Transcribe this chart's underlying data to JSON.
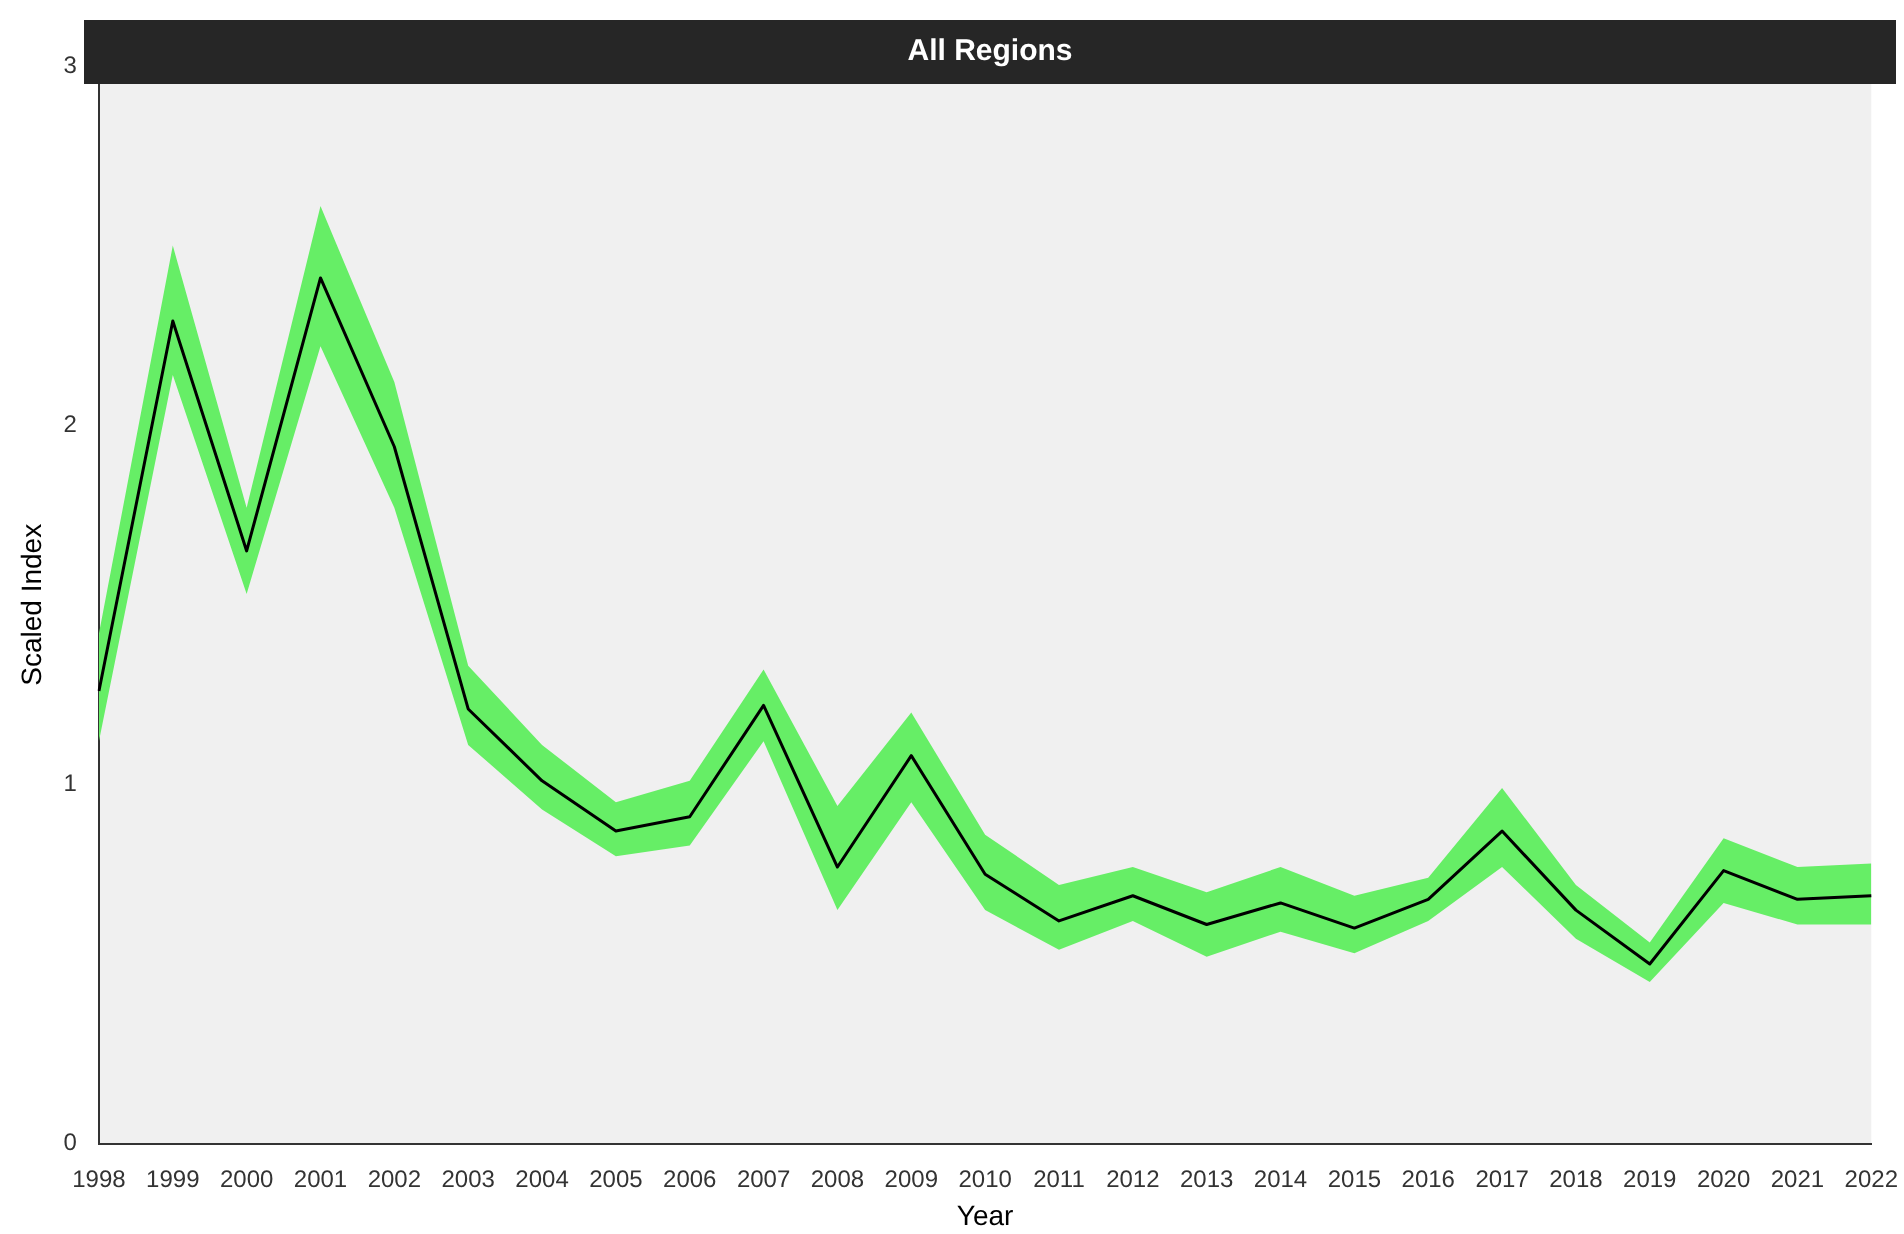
{
  "chart_data": {
    "type": "line",
    "title": "All Regions",
    "xlabel": "Year",
    "ylabel": "Scaled Index",
    "categories": [
      "1998",
      "1999",
      "2000",
      "2001",
      "2002",
      "2003",
      "2004",
      "2005",
      "2006",
      "2007",
      "2008",
      "2009",
      "2010",
      "2011",
      "2012",
      "2013",
      "2014",
      "2015",
      "2016",
      "2017",
      "2018",
      "2019",
      "2020",
      "2021",
      "2022"
    ],
    "series": [
      {
        "color": "#000000",
        "values": [
          1.26,
          2.29,
          1.65,
          2.41,
          1.94,
          1.21,
          1.01,
          0.87,
          0.91,
          1.22,
          0.77,
          1.08,
          0.75,
          0.62,
          0.69,
          0.61,
          0.67,
          0.6,
          0.68,
          0.87,
          0.65,
          0.5,
          0.76,
          0.68,
          0.69
        ],
        "lower": [
          1.12,
          2.14,
          1.53,
          2.22,
          1.77,
          1.11,
          0.93,
          0.8,
          0.83,
          1.12,
          0.65,
          0.95,
          0.65,
          0.54,
          0.62,
          0.52,
          0.59,
          0.53,
          0.62,
          0.77,
          0.57,
          0.45,
          0.67,
          0.61,
          0.61
        ],
        "upper": [
          1.42,
          2.5,
          1.77,
          2.61,
          2.12,
          1.33,
          1.11,
          0.95,
          1.01,
          1.32,
          0.94,
          1.2,
          0.86,
          0.72,
          0.77,
          0.7,
          0.77,
          0.69,
          0.74,
          0.99,
          0.72,
          0.56,
          0.85,
          0.77,
          0.78
        ]
      }
    ],
    "ylim": [
      0,
      3
    ],
    "yticks": [
      0,
      1,
      2,
      3
    ],
    "grid": false,
    "legend": false,
    "marker": "none",
    "line_style": "solid"
  }
}
